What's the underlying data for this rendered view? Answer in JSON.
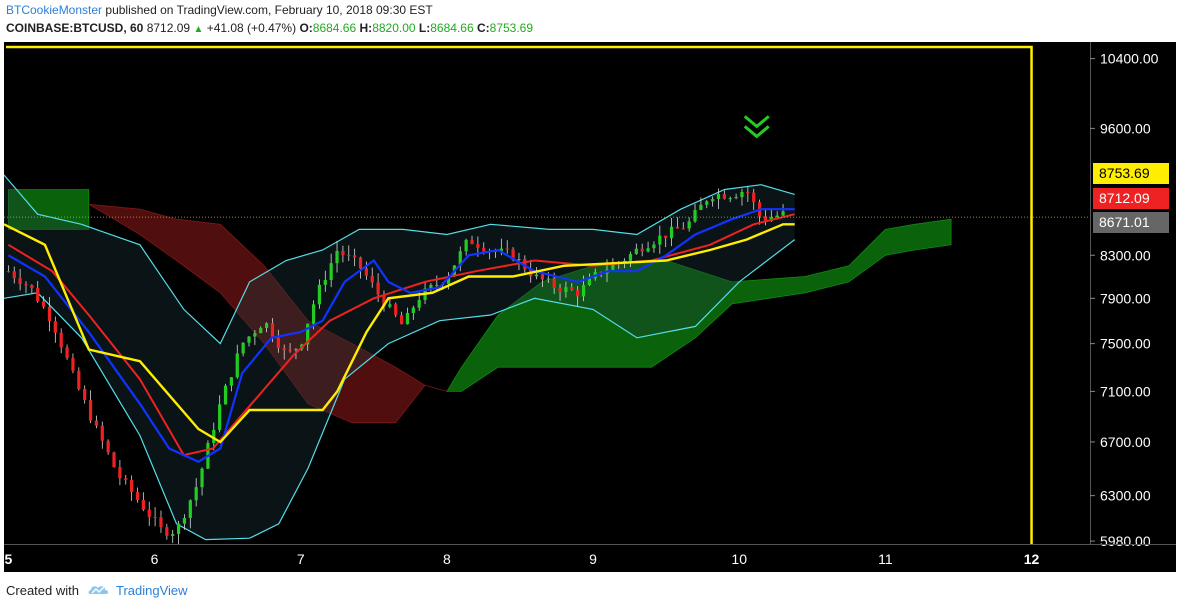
{
  "header": {
    "author": "BTCookieMonster",
    "published_text": "published on TradingView.com, February 10, 2018 09:30 EST",
    "symbol": "COINBASE:BTCUSD, 60",
    "last": "8712.09",
    "change": "+41.08 (+0.47%)",
    "o_label": "O:",
    "o_value": "8684.66",
    "h_label": "H:",
    "h_value": "8820.00",
    "l_label": "L:",
    "l_value": "8684.66",
    "c_label": "C:",
    "c_value": "8753.69"
  },
  "footer": {
    "created_with": "Created with",
    "brand": "TradingView"
  },
  "colors": {
    "background": "#000000",
    "axis_bg": "#000000",
    "candle_up": "#22cc22",
    "candle_down": "#ee2222",
    "kijun": "#ffee00",
    "tenkan": "#1133ff",
    "ema": "#ee2222",
    "bollinger": "#55dde8",
    "cloud_bull": "#0b6e0b",
    "cloud_bear": "#5a1010",
    "projection_box": "#ffee00",
    "marker": "#22cc22"
  },
  "chart_data": {
    "type": "candlestick",
    "instrument": "COINBASE:BTCUSD",
    "interval": "60",
    "x_ticks": [
      "5",
      "6",
      "7",
      "8",
      "9",
      "10",
      "11",
      "12"
    ],
    "x_tick_days": [
      5,
      6,
      7,
      8,
      9,
      10,
      11,
      12
    ],
    "xlim": [
      4.97,
      12.4
    ],
    "ylim": [
      5960,
      10600
    ],
    "y_ticks": [
      5980,
      6300,
      6700,
      7100,
      7500,
      7900,
      8300,
      9600,
      10400
    ],
    "y_tick_labels": [
      "5980.00",
      "6300.00",
      "6700.00",
      "7100.00",
      "7500.00",
      "7900.00",
      "8300.00",
      "9600.00",
      "10400.00"
    ],
    "price_tags": [
      {
        "label": "8753.69",
        "value": 8753.69,
        "bg": "#ffee00",
        "fg": "#000000"
      },
      {
        "label": "8712.09",
        "value": 8712.09,
        "bg": "#ee2222",
        "fg": "#ffffff"
      },
      {
        "label": "8671.01",
        "value": 8671.01,
        "bg": "#666666",
        "fg": "#ffffff"
      }
    ],
    "current_price_line": 8671.01,
    "candle_keys": [
      [
        5.0,
        8150
      ],
      [
        5.15,
        8000
      ],
      [
        5.3,
        7700
      ],
      [
        5.45,
        7200
      ],
      [
        5.6,
        6800
      ],
      [
        5.75,
        6450
      ],
      [
        5.9,
        6250
      ],
      [
        6.05,
        6050
      ],
      [
        6.15,
        6050
      ],
      [
        6.3,
        6400
      ],
      [
        6.45,
        7000
      ],
      [
        6.6,
        7500
      ],
      [
        6.75,
        7700
      ],
      [
        6.9,
        7400
      ],
      [
        7.0,
        7500
      ],
      [
        7.1,
        7900
      ],
      [
        7.25,
        8350
      ],
      [
        7.4,
        8200
      ],
      [
        7.55,
        7900
      ],
      [
        7.7,
        7650
      ],
      [
        7.8,
        7900
      ],
      [
        8.0,
        8100
      ],
      [
        8.15,
        8450
      ],
      [
        8.3,
        8350
      ],
      [
        8.45,
        8300
      ],
      [
        8.6,
        8100
      ],
      [
        8.75,
        8000
      ],
      [
        8.9,
        7950
      ],
      [
        9.05,
        8150
      ],
      [
        9.2,
        8250
      ],
      [
        9.35,
        8400
      ],
      [
        9.5,
        8500
      ],
      [
        9.65,
        8600
      ],
      [
        9.8,
        8900
      ],
      [
        9.95,
        8900
      ],
      [
        10.05,
        8950
      ],
      [
        10.15,
        8650
      ],
      [
        10.3,
        8700
      ]
    ],
    "cloud": [
      {
        "from": 5.0,
        "to": 5.55,
        "top": 8950,
        "bottom": 8550,
        "type": "bull"
      },
      {
        "from": 5.55,
        "to": 8.0,
        "top_keys": [
          [
            5.55,
            8800
          ],
          [
            5.9,
            8750
          ],
          [
            6.15,
            8650
          ],
          [
            6.45,
            8600
          ],
          [
            6.75,
            8200
          ],
          [
            7.05,
            7700
          ],
          [
            7.35,
            7500
          ],
          [
            7.65,
            7300
          ],
          [
            7.85,
            7150
          ],
          [
            8.0,
            7100
          ]
        ],
        "bottom_keys": [
          [
            5.55,
            8800
          ],
          [
            5.9,
            8500
          ],
          [
            6.15,
            8250
          ],
          [
            6.45,
            7950
          ],
          [
            6.75,
            7500
          ],
          [
            7.05,
            7000
          ],
          [
            7.35,
            6850
          ],
          [
            7.65,
            6850
          ],
          [
            7.85,
            7150
          ],
          [
            8.0,
            7100
          ]
        ],
        "type": "bear"
      },
      {
        "from": 8.0,
        "to": 11.45,
        "top_keys": [
          [
            8.0,
            7100
          ],
          [
            8.1,
            7300
          ],
          [
            8.35,
            7750
          ],
          [
            8.65,
            8050
          ],
          [
            9.0,
            8200
          ],
          [
            9.5,
            8250
          ],
          [
            9.95,
            8050
          ],
          [
            10.45,
            8100
          ],
          [
            10.75,
            8200
          ],
          [
            11.0,
            8550
          ],
          [
            11.2,
            8600
          ],
          [
            11.45,
            8650
          ]
        ],
        "bottom_keys": [
          [
            8.0,
            7100
          ],
          [
            8.1,
            7100
          ],
          [
            8.35,
            7300
          ],
          [
            8.65,
            7300
          ],
          [
            9.0,
            7300
          ],
          [
            9.4,
            7300
          ],
          [
            9.7,
            7550
          ],
          [
            9.95,
            7850
          ],
          [
            10.45,
            7950
          ],
          [
            10.75,
            8050
          ],
          [
            11.0,
            8300
          ],
          [
            11.2,
            8350
          ],
          [
            11.45,
            8400
          ]
        ],
        "type": "bull"
      }
    ],
    "kijun_keys": [
      [
        4.97,
        8600
      ],
      [
        5.25,
        8400
      ],
      [
        5.55,
        7450
      ],
      [
        5.9,
        7350
      ],
      [
        6.3,
        6800
      ],
      [
        6.45,
        6700
      ],
      [
        6.65,
        6950
      ],
      [
        6.75,
        6950
      ],
      [
        7.15,
        6950
      ],
      [
        7.25,
        7100
      ],
      [
        7.45,
        7600
      ],
      [
        7.6,
        7900
      ],
      [
        7.9,
        7950
      ],
      [
        8.15,
        8100
      ],
      [
        8.45,
        8100
      ],
      [
        8.8,
        8200
      ],
      [
        9.5,
        8250
      ],
      [
        9.8,
        8350
      ],
      [
        10.05,
        8450
      ],
      [
        10.3,
        8600
      ],
      [
        10.38,
        8600
      ]
    ],
    "tenkan_keys": [
      [
        5.0,
        8300
      ],
      [
        5.25,
        8100
      ],
      [
        5.55,
        7600
      ],
      [
        5.9,
        7000
      ],
      [
        6.1,
        6650
      ],
      [
        6.3,
        6550
      ],
      [
        6.45,
        6650
      ],
      [
        6.6,
        7250
      ],
      [
        6.8,
        7550
      ],
      [
        7.0,
        7600
      ],
      [
        7.15,
        7700
      ],
      [
        7.3,
        8050
      ],
      [
        7.5,
        8250
      ],
      [
        7.6,
        8050
      ],
      [
        7.75,
        7950
      ],
      [
        7.95,
        8000
      ],
      [
        8.15,
        8300
      ],
      [
        8.35,
        8350
      ],
      [
        8.6,
        8150
      ],
      [
        8.9,
        8050
      ],
      [
        9.1,
        8150
      ],
      [
        9.3,
        8150
      ],
      [
        9.5,
        8300
      ],
      [
        9.7,
        8500
      ],
      [
        9.95,
        8650
      ],
      [
        10.15,
        8750
      ],
      [
        10.38,
        8750
      ]
    ],
    "ema_keys": [
      [
        5.0,
        8400
      ],
      [
        5.3,
        8150
      ],
      [
        5.55,
        7750
      ],
      [
        5.9,
        7200
      ],
      [
        6.2,
        6600
      ],
      [
        6.4,
        6650
      ],
      [
        6.7,
        7050
      ],
      [
        6.95,
        7400
      ],
      [
        7.2,
        7700
      ],
      [
        7.5,
        7900
      ],
      [
        7.85,
        8050
      ],
      [
        8.2,
        8150
      ],
      [
        8.6,
        8250
      ],
      [
        9.0,
        8200
      ],
      [
        9.4,
        8250
      ],
      [
        9.8,
        8400
      ],
      [
        10.1,
        8600
      ],
      [
        10.38,
        8700
      ]
    ],
    "bb_upper_keys": [
      [
        4.97,
        9100
      ],
      [
        5.2,
        8700
      ],
      [
        5.5,
        8600
      ],
      [
        5.9,
        8400
      ],
      [
        6.2,
        7800
      ],
      [
        6.45,
        7500
      ],
      [
        6.65,
        8050
      ],
      [
        6.9,
        8250
      ],
      [
        7.15,
        8350
      ],
      [
        7.4,
        8550
      ],
      [
        7.7,
        8550
      ],
      [
        8.0,
        8500
      ],
      [
        8.3,
        8600
      ],
      [
        8.7,
        8550
      ],
      [
        9.0,
        8550
      ],
      [
        9.3,
        8500
      ],
      [
        9.6,
        8750
      ],
      [
        9.9,
        8950
      ],
      [
        10.15,
        9000
      ],
      [
        10.38,
        8900
      ]
    ],
    "bb_lower_keys": [
      [
        4.97,
        7900
      ],
      [
        5.2,
        7950
      ],
      [
        5.5,
        7550
      ],
      [
        5.9,
        6750
      ],
      [
        6.15,
        6100
      ],
      [
        6.35,
        5990
      ],
      [
        6.65,
        6000
      ],
      [
        6.85,
        6100
      ],
      [
        7.05,
        6500
      ],
      [
        7.3,
        7200
      ],
      [
        7.6,
        7500
      ],
      [
        7.95,
        7700
      ],
      [
        8.3,
        7750
      ],
      [
        8.6,
        7900
      ],
      [
        9.0,
        7800
      ],
      [
        9.3,
        7550
      ],
      [
        9.7,
        7650
      ],
      [
        10.0,
        8050
      ],
      [
        10.38,
        8450
      ]
    ],
    "projection_box": {
      "x_start": 4.97,
      "x_end": 12.0,
      "top": 10600,
      "bottom": 5960
    },
    "marker": {
      "x": 10.12,
      "y": 9600,
      "type": "double-chevron-down"
    }
  }
}
